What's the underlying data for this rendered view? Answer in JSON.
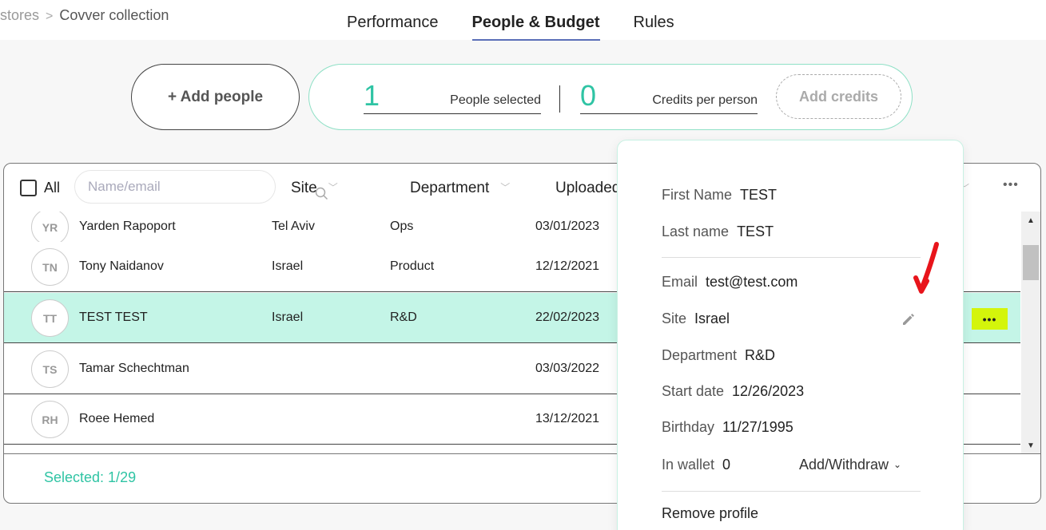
{
  "breadcrumb": {
    "parent": "stores",
    "sep": ">",
    "current": "Covver collection"
  },
  "tabs": [
    {
      "label": "Performance"
    },
    {
      "label": "People & Budget",
      "active": true
    },
    {
      "label": "Rules"
    }
  ],
  "add_people_label": "+ Add people",
  "summary": {
    "people_selected_value": "1",
    "people_selected_label": "People selected",
    "credits_value": "0",
    "credits_label": "Credits per person",
    "add_credits_label": "Add credits"
  },
  "table": {
    "all_label": "All",
    "search_placeholder": "Name/email",
    "columns": [
      "Site",
      "Department",
      "Uploaded"
    ],
    "more_label": "•••",
    "rows": [
      {
        "initials": "YR",
        "name": "Yarden Rapoport",
        "site": "Tel Aviv",
        "department": "Ops",
        "uploaded": "03/01/2023"
      },
      {
        "initials": "TN",
        "name": "Tony Naidanov",
        "site": "Israel",
        "department": "Product",
        "uploaded": "12/12/2021"
      },
      {
        "initials": "TT",
        "name": "TEST TEST",
        "site": "Israel",
        "department": "R&D",
        "uploaded": "22/02/2023",
        "selected": true
      },
      {
        "initials": "TS",
        "name": "Tamar Schechtman",
        "site": "",
        "department": "",
        "uploaded": "03/03/2022"
      },
      {
        "initials": "RH",
        "name": "Roee Hemed",
        "site": "",
        "department": "",
        "uploaded": "13/12/2021"
      }
    ],
    "row_more_label": "•••",
    "selected_count": "Selected: 1/29"
  },
  "profile": {
    "first_name_label": "First Name",
    "first_name": "TEST",
    "last_name_label": "Last name",
    "last_name": "TEST",
    "email_label": "Email",
    "email": "test@test.com",
    "site_label": "Site",
    "site": "Israel",
    "department_label": "Department",
    "department": "R&D",
    "start_date_label": "Start date",
    "start_date": "12/26/2023",
    "birthday_label": "Birthday",
    "birthday": "11/27/1995",
    "wallet_label": "In wallet",
    "wallet": "0",
    "add_withdraw_label": "Add/Withdraw",
    "remove_label": "Remove profile"
  },
  "colors": {
    "accent": "#2fc4a4",
    "selected_row": "#c4f5e7",
    "highlight": "#d4f50b",
    "annotation": "#e8141b"
  }
}
